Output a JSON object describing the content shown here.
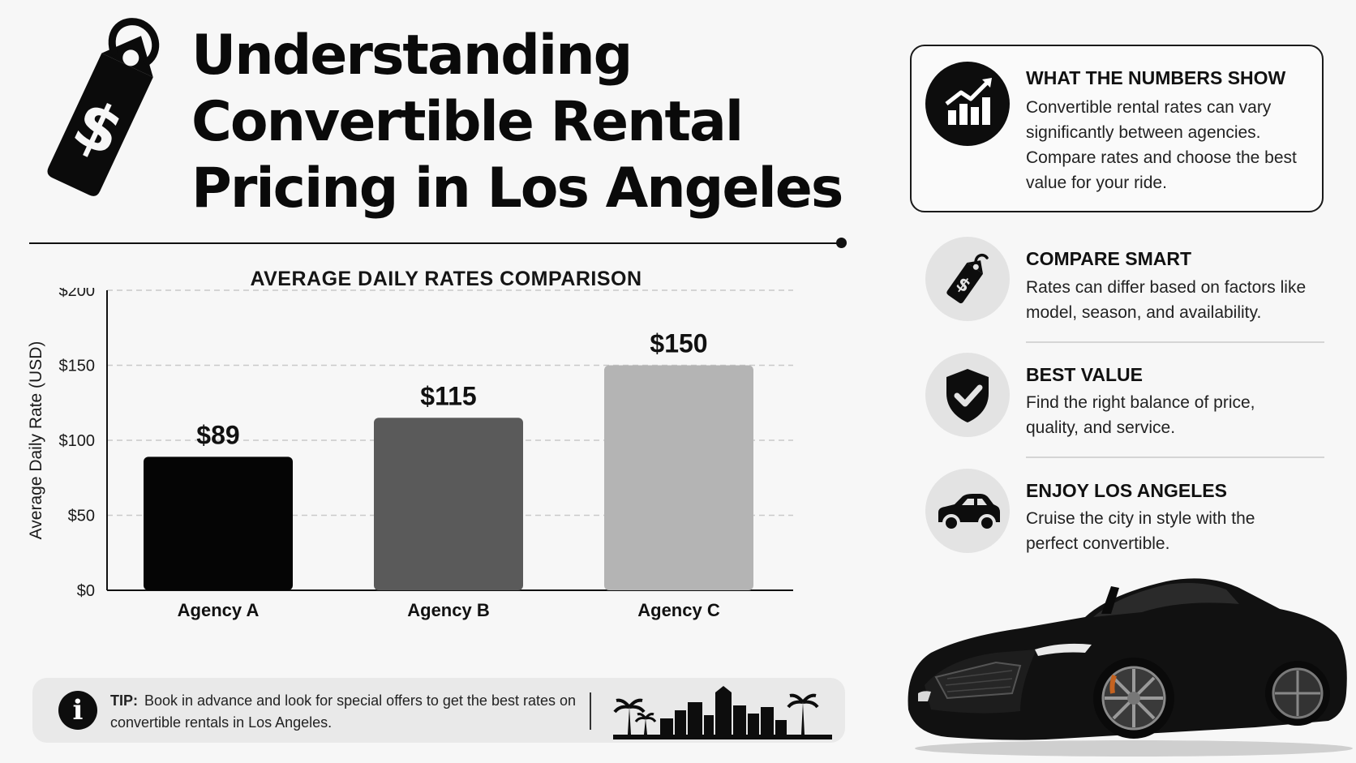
{
  "title": {
    "line1": "Understanding",
    "line2": "Convertible Rental",
    "line3": "Pricing in Los Angeles"
  },
  "chart_data": {
    "type": "bar",
    "title": "AVERAGE DAILY RATES COMPARISON",
    "ylabel": "Average Daily Rate (USD)",
    "xlabel": "",
    "categories": [
      "Agency A",
      "Agency B",
      "Agency C"
    ],
    "values": [
      89,
      115,
      150
    ],
    "value_labels": [
      "$89",
      "$115",
      "$150"
    ],
    "bar_colors": [
      "#050505",
      "#5a5a5a",
      "#b4b4b4"
    ],
    "ylim": [
      0,
      200
    ],
    "yticks": [
      0,
      50,
      100,
      150,
      200
    ],
    "ytick_labels": [
      "$0",
      "$50",
      "$100",
      "$150",
      "$200"
    ],
    "grid": true
  },
  "tip": {
    "label": "TIP:",
    "text": "Book in advance and look for special offers to get the best rates on convertible rentals in Los Angeles."
  },
  "sections": {
    "numbers": {
      "heading": "WHAT THE NUMBERS SHOW",
      "body": "Convertible rental rates can vary significantly between agencies. Compare rates and choose the best value for your ride.",
      "icon": "bar-chart-growth-icon"
    },
    "compare": {
      "heading": "COMPARE SMART",
      "body": "Rates can differ based on factors like model, season, and availability.",
      "icon": "price-tag-icon"
    },
    "value": {
      "heading": "BEST VALUE",
      "body": "Find the right balance of price, quality, and service.",
      "icon": "shield-check-icon"
    },
    "enjoy": {
      "heading": "ENJOY LOS ANGELES",
      "body": "Cruise the city in style with the perfect convertible.",
      "icon": "car-icon"
    }
  },
  "colors": {
    "ink": "#0d0d0d",
    "icon_circle_light": "#e3e3e3",
    "tip_background": "#e9e9e9"
  }
}
